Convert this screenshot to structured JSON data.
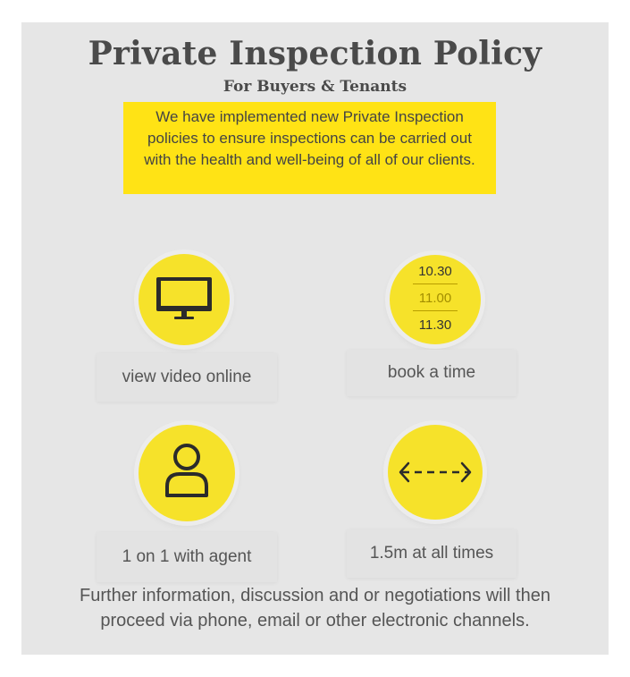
{
  "title": "Private Inspection Policy",
  "subtitle": "For Buyers & Tenants",
  "notice": "We have implemented new Private Inspection policies to ensure inspections can be carried out with the health and well-being of all of our clients.",
  "steps": [
    {
      "label": "view video online",
      "icon": "monitor-icon"
    },
    {
      "label": "book a time",
      "icon": "time-slots-icon",
      "times": [
        "10.30",
        "11.00",
        "11.30"
      ]
    },
    {
      "label": "1 on 1 with agent",
      "icon": "person-icon"
    },
    {
      "label": "1.5m at all times",
      "icon": "distance-arrow-icon"
    }
  ],
  "footer": {
    "line1": "Further information, discussion and or negotiations will then",
    "line2": "proceed via phone, email or other electronic channels."
  },
  "colors": {
    "accent_yellow": "#ffe315",
    "circle_yellow": "#f6e22a",
    "panel_gray": "#e6e6e6",
    "text_gray": "#4a4a4a"
  }
}
